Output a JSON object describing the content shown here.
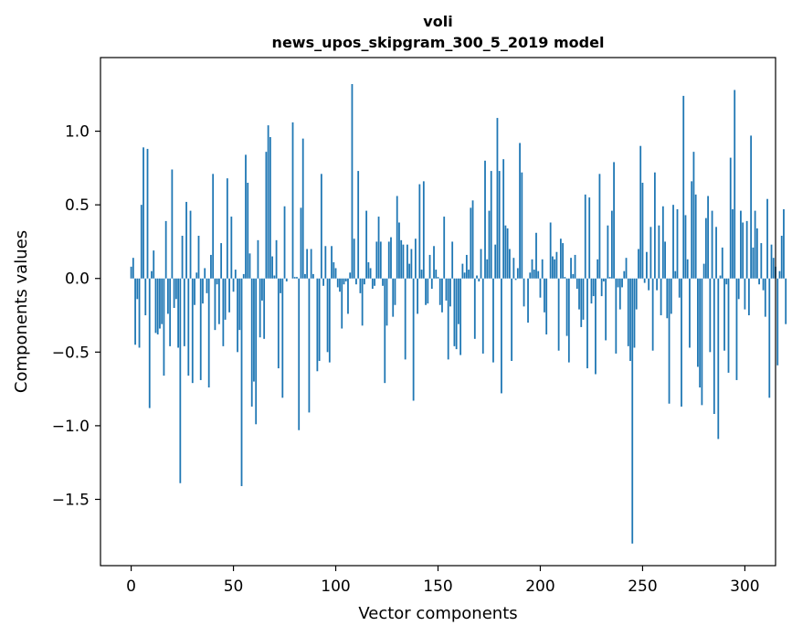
{
  "chart_data": {
    "type": "bar",
    "title_line1": "voli",
    "title_line2": "news_upos_skipgram_300_5_2019 model",
    "xlabel": "Vector components",
    "ylabel": "Components values",
    "xlim": [
      -15,
      315
    ],
    "ylim": [
      -1.95,
      1.5
    ],
    "xticks": [
      0,
      50,
      100,
      150,
      200,
      250,
      300
    ],
    "yticks": [
      -1.5,
      -1.0,
      -0.5,
      0.0,
      0.5,
      1.0
    ],
    "ytick_labels": [
      "−1.5",
      "−1.0",
      "−0.5",
      "0.0",
      "0.5",
      "1.0"
    ],
    "bar_color": "#1f77b4",
    "grid": false,
    "values": [
      0.08,
      0.14,
      -0.45,
      -0.14,
      -0.47,
      0.5,
      0.89,
      -0.25,
      0.88,
      -0.88,
      0.05,
      0.19,
      -0.37,
      -0.38,
      -0.34,
      -0.31,
      -0.66,
      0.39,
      -0.24,
      -0.46,
      0.74,
      -0.2,
      -0.14,
      -0.47,
      -1.39,
      0.29,
      -0.46,
      0.52,
      -0.66,
      0.46,
      -0.71,
      -0.18,
      0.04,
      0.29,
      -0.69,
      -0.17,
      0.07,
      -0.1,
      -0.74,
      0.16,
      0.71,
      -0.35,
      -0.04,
      -0.31,
      0.24,
      -0.46,
      -0.28,
      0.68,
      -0.23,
      0.42,
      -0.09,
      0.06,
      -0.5,
      -0.35,
      -1.41,
      0.03,
      0.84,
      0.65,
      0.17,
      -0.87,
      -0.7,
      -0.99,
      0.26,
      -0.4,
      -0.15,
      -0.41,
      0.86,
      1.04,
      0.96,
      0.15,
      0.02,
      0.26,
      -0.61,
      -0.1,
      -0.81,
      0.49,
      -0.02,
      0.0,
      0.0,
      1.06,
      0.01,
      0.01,
      -1.03,
      0.48,
      0.95,
      0.03,
      0.2,
      -0.91,
      0.2,
      0.03,
      0.0,
      -0.63,
      -0.56,
      0.71,
      -0.05,
      0.22,
      -0.5,
      -0.57,
      0.22,
      0.11,
      0.07,
      -0.06,
      -0.09,
      -0.34,
      -0.04,
      -0.02,
      -0.24,
      0.04,
      1.32,
      0.27,
      -0.04,
      0.73,
      -0.1,
      -0.32,
      -0.04,
      0.46,
      0.11,
      0.07,
      -0.07,
      -0.05,
      0.25,
      0.42,
      0.25,
      -0.05,
      -0.71,
      -0.32,
      0.25,
      0.28,
      -0.26,
      -0.18,
      0.56,
      0.38,
      0.26,
      0.23,
      -0.55,
      0.23,
      0.1,
      0.2,
      -0.83,
      0.27,
      -0.24,
      0.64,
      0.06,
      0.66,
      -0.18,
      -0.17,
      0.16,
      -0.07,
      0.22,
      0.06,
      0.01,
      -0.18,
      -0.23,
      0.42,
      -0.15,
      -0.55,
      -0.19,
      0.25,
      -0.46,
      -0.48,
      -0.31,
      -0.52,
      0.1,
      0.04,
      0.16,
      0.06,
      0.48,
      0.53,
      -0.41,
      0.02,
      -0.02,
      0.2,
      -0.51,
      0.8,
      0.13,
      0.46,
      0.73,
      -0.57,
      0.23,
      1.09,
      0.73,
      -0.78,
      0.81,
      0.36,
      0.34,
      0.2,
      -0.56,
      0.14,
      -0.01,
      0.07,
      0.92,
      0.72,
      -0.19,
      0.0,
      -0.3,
      0.04,
      0.13,
      0.06,
      0.31,
      0.05,
      -0.13,
      0.13,
      -0.23,
      -0.38,
      0.0,
      0.38,
      0.15,
      0.13,
      0.18,
      -0.49,
      0.27,
      0.24,
      0.01,
      -0.39,
      -0.57,
      0.14,
      0.03,
      0.16,
      -0.07,
      -0.21,
      -0.33,
      -0.28,
      0.57,
      -0.61,
      0.55,
      -0.17,
      -0.12,
      -0.65,
      0.13,
      0.71,
      -0.12,
      -0.02,
      -0.42,
      0.36,
      0.01,
      0.46,
      0.79,
      -0.51,
      -0.06,
      -0.21,
      -0.06,
      0.05,
      0.14,
      -0.46,
      -0.56,
      -1.8,
      -0.47,
      -0.21,
      0.2,
      0.9,
      0.65,
      -0.03,
      0.18,
      -0.08,
      0.35,
      -0.49,
      0.72,
      -0.08,
      0.36,
      -0.25,
      0.49,
      0.25,
      -0.27,
      -0.85,
      -0.24,
      0.5,
      0.05,
      0.47,
      -0.13,
      -0.87,
      1.24,
      0.43,
      0.13,
      -0.47,
      0.66,
      0.86,
      0.57,
      -0.6,
      -0.74,
      -0.86,
      0.1,
      0.41,
      0.56,
      -0.5,
      0.46,
      -0.92,
      0.35,
      -1.09,
      0.02,
      0.21,
      -0.49,
      -0.04,
      -0.64,
      0.82,
      0.47,
      1.28,
      -0.69,
      -0.14,
      0.46,
      0.38,
      -0.21,
      0.39,
      -0.25,
      0.97,
      0.21,
      0.46,
      0.34,
      -0.04,
      0.24,
      -0.08,
      -0.26,
      0.54,
      -0.81,
      0.23,
      0.14,
      0.08,
      -0.59,
      0.05,
      0.29,
      0.47,
      -0.31
    ]
  }
}
